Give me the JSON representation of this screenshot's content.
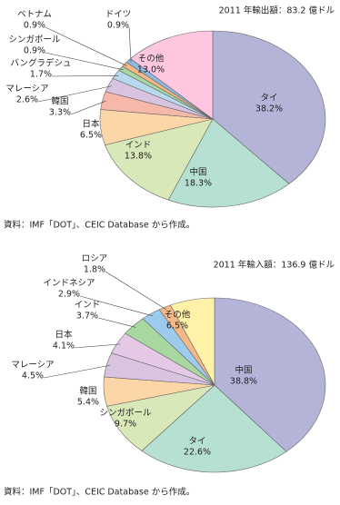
{
  "chart_data": [
    {
      "type": "pie",
      "title": "2011 年輸出額：83.2 億ドル",
      "source": "資料：IMF「DOT」、CEIC Database から作成。",
      "categories": [
        "タイ",
        "中国",
        "インド",
        "日本",
        "韓国",
        "マレーシア",
        "バングラデシュ",
        "シンガポール",
        "ベトナム",
        "ドイツ",
        "その他"
      ],
      "values": [
        38.2,
        18.3,
        13.8,
        6.5,
        3.3,
        2.6,
        1.7,
        0.9,
        0.9,
        0.9,
        13.0
      ],
      "value_labels": [
        "38.2%",
        "18.3%",
        "13.8%",
        "6.5%",
        "3.3%",
        "2.6%",
        "1.7%",
        "0.9%",
        "0.9%",
        "0.9%",
        "13.0%"
      ],
      "colors": [
        "#b4b4d9",
        "#b6e1d2",
        "#d9e8b8",
        "#fdd6a8",
        "#f6b8a8",
        "#d8c4e0",
        "#b8d8ee",
        "#a8d8a0",
        "#f5b887",
        "#8fb8e0",
        "#ffc6df"
      ]
    },
    {
      "type": "pie",
      "title": "2011 年輸入額：136.9 億ドル",
      "source": "資料：IMF「DOT」、CEIC Database から作成。",
      "categories": [
        "中国",
        "タイ",
        "シンガポール",
        "韓国",
        "マレーシア",
        "日本",
        "インド",
        "インドネシア",
        "ロシア",
        "その他"
      ],
      "values": [
        38.8,
        22.6,
        9.7,
        5.4,
        4.5,
        4.1,
        3.7,
        2.9,
        1.8,
        6.5
      ],
      "value_labels": [
        "38.8%",
        "22.6%",
        "9.7%",
        "5.4%",
        "4.5%",
        "4.1%",
        "3.7%",
        "2.9%",
        "1.8%",
        "6.5%"
      ],
      "colors": [
        "#b4b4d9",
        "#b6e1d2",
        "#d9e8b8",
        "#fdd6a8",
        "#d8c4e0",
        "#e4c8e6",
        "#a8d8a0",
        "#9ccbee",
        "#f5b887",
        "#fff2a8"
      ]
    }
  ]
}
